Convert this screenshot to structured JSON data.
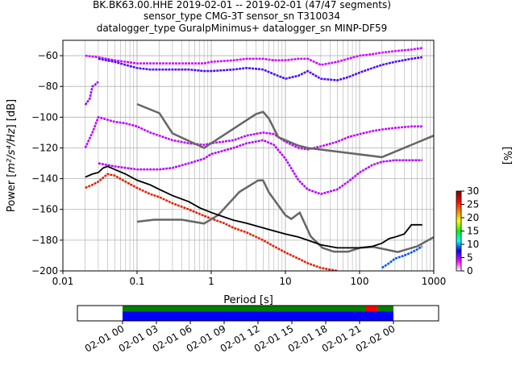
{
  "title": {
    "line1": "BK.BK63.00.HHE   2019-02-01 -- 2019-02-01  (47/47 segments)",
    "line2": "sensor_type CMG-3T sensor_sn T310034",
    "line3": "datalogger_type GuralpMinimus+ datalogger_sn MINP-DF59"
  },
  "chart_data": [
    {
      "type": "heatmap",
      "subtype": "probabilistic power spectral density",
      "xlabel": "Period [s]",
      "ylabel_prefix": "Power [",
      "ylabel_units": "m²/s⁴/Hz",
      "ylabel_suffix": "] [dB]",
      "xscale": "log",
      "xlim": [
        0.01,
        1000
      ],
      "ylim": [
        -200,
        -50
      ],
      "xticks": [
        {
          "value": 0.01,
          "label": "0.01"
        },
        {
          "value": 0.1,
          "label": "0.1"
        },
        {
          "value": 1,
          "label": "1"
        },
        {
          "value": 10,
          "label": "10"
        },
        {
          "value": 100,
          "label": "100"
        },
        {
          "value": 1000,
          "label": "1000"
        }
      ],
      "yticks": [
        {
          "value": -60,
          "label": "−60"
        },
        {
          "value": -80,
          "label": "−80"
        },
        {
          "value": -100,
          "label": "−100"
        },
        {
          "value": -120,
          "label": "−120"
        },
        {
          "value": -140,
          "label": "−140"
        },
        {
          "value": -160,
          "label": "−160"
        },
        {
          "value": -180,
          "label": "−180"
        },
        {
          "value": -200,
          "label": "−200"
        }
      ],
      "grid": true,
      "colors": {
        "noise_model": "#666666",
        "mode": "#000000"
      },
      "noise_models": [
        {
          "x": [
            0.1,
            0.2,
            0.3,
            0.8,
            4,
            5,
            6,
            8,
            15,
            20,
            200,
            1000
          ],
          "y": [
            -91.5,
            -97.4,
            -110.5,
            -120,
            -98,
            -96.5,
            -101,
            -113,
            -118.5,
            -120,
            -126,
            -112
          ]
        },
        {
          "x": [
            0.1,
            0.17,
            0.4,
            0.8,
            1.24,
            2.4,
            4.3,
            5,
            6,
            10,
            12,
            15.6,
            21.9,
            31.6,
            45,
            70,
            101,
            154,
            328,
            600,
            1000
          ],
          "y": [
            -168,
            -166.7,
            -166.7,
            -169.2,
            -163.7,
            -148.6,
            -141.1,
            -141.1,
            -149,
            -163.8,
            -166.2,
            -162.1,
            -177.5,
            -185,
            -187.5,
            -187.5,
            -185,
            -184.4,
            -187.7,
            -184,
            -178
          ]
        }
      ],
      "mode_curve": {
        "x": [
          0.02,
          0.025,
          0.03,
          0.035,
          0.04,
          0.05,
          0.07,
          0.1,
          0.15,
          0.2,
          0.3,
          0.5,
          0.7,
          1,
          1.5,
          2,
          3,
          5,
          7,
          10,
          15,
          20,
          30,
          50,
          70,
          100,
          150,
          200,
          250,
          300,
          400,
          500,
          700
        ],
        "y": [
          -139,
          -137,
          -136,
          -133,
          -132,
          -134,
          -137,
          -141,
          -144,
          -147,
          -151,
          -155,
          -159,
          -162,
          -165,
          -167,
          -169,
          -172,
          -174,
          -176,
          -178,
          -180,
          -183,
          -185,
          -185,
          -185,
          -184,
          -182,
          -179,
          -178,
          -176,
          -170,
          -170
        ]
      },
      "pdf_bands": [
        {
          "x": [
            0.02,
            0.023,
            0.024,
            0.025,
            0.027,
            0.03
          ],
          "y": [
            -92,
            -88,
            -84,
            -80,
            -79,
            -77
          ]
        },
        {
          "x": [
            0.02,
            0.03,
            0.05,
            0.07,
            0.1,
            0.15,
            0.2,
            0.3,
            0.5,
            0.8,
            1,
            2,
            3,
            5,
            7,
            10,
            15,
            20,
            30,
            50,
            70,
            100,
            150,
            200,
            300,
            500,
            700
          ],
          "y": [
            -60,
            -61,
            -63,
            -64,
            -65,
            -65,
            -65,
            -65,
            -65,
            -65,
            -64,
            -63,
            -62,
            -62,
            -63,
            -63,
            -62,
            -62,
            -66,
            -64,
            -62,
            -60,
            -59,
            -58,
            -57,
            -56,
            -55
          ]
        },
        {
          "x": [
            0.03,
            0.05,
            0.07,
            0.1,
            0.15,
            0.2,
            0.3,
            0.5,
            0.8,
            1,
            2,
            3,
            5,
            7,
            10,
            15,
            20,
            30,
            50,
            70,
            100,
            150,
            200,
            300,
            500,
            700
          ],
          "y": [
            -62,
            -64,
            -66,
            -68,
            -69,
            -69,
            -69,
            -69,
            -70,
            -70,
            -69,
            -68,
            -69,
            -72,
            -75,
            -73,
            -70,
            -75,
            -76,
            -74,
            -71,
            -68,
            -66,
            -64,
            -62,
            -61
          ]
        },
        {
          "x": [
            0.02,
            0.025,
            0.03,
            0.05,
            0.07,
            0.1,
            0.15,
            0.2,
            0.3,
            0.5,
            0.8,
            1,
            2,
            3,
            5,
            7,
            10,
            15,
            20,
            30,
            50,
            70,
            100,
            150,
            200,
            300,
            500,
            700
          ],
          "y": [
            -120,
            -110,
            -100,
            -103,
            -104,
            -106,
            -110,
            -112,
            -115,
            -117,
            -118,
            -117,
            -115,
            -112,
            -110,
            -111,
            -116,
            -120,
            -121,
            -119,
            -116,
            -113,
            -111,
            -109,
            -108,
            -107,
            -106,
            -106
          ]
        },
        {
          "x": [
            0.03,
            0.05,
            0.07,
            0.1,
            0.15,
            0.2,
            0.3,
            0.5,
            0.8,
            1,
            2,
            3,
            5,
            7,
            10,
            15,
            20,
            30,
            50,
            70,
            100,
            150,
            200,
            300,
            500,
            700
          ],
          "y": [
            -130,
            -132,
            -133,
            -134,
            -134,
            -134,
            -133,
            -130,
            -127,
            -124,
            -120,
            -117,
            -115,
            -118,
            -127,
            -141,
            -147,
            -150,
            -147,
            -142,
            -136,
            -131,
            -129,
            -128,
            -128,
            -128
          ]
        },
        {
          "x": [
            0.02,
            0.025,
            0.03,
            0.04,
            0.05,
            0.07,
            0.1,
            0.15,
            0.2,
            0.3,
            0.5,
            0.7,
            1,
            1.5,
            2,
            3,
            5,
            7,
            10,
            15,
            20,
            30,
            50
          ],
          "y": [
            -146,
            -144,
            -142,
            -137,
            -138,
            -142,
            -146,
            -150,
            -152,
            -156,
            -160,
            -163,
            -166,
            -169,
            -172,
            -175,
            -180,
            -184,
            -188,
            -192,
            -195,
            -198,
            -200
          ]
        },
        {
          "x": [
            200,
            250,
            300,
            400,
            500,
            600,
            700
          ],
          "y": [
            -198,
            -195,
            -192,
            -190,
            -188,
            -186,
            -184
          ]
        }
      ],
      "colorbar": {
        "label": "[%]",
        "range": [
          0,
          30
        ],
        "ticks": [
          {
            "value": 0,
            "label": "0"
          },
          {
            "value": 5,
            "label": "5"
          },
          {
            "value": 10,
            "label": "10"
          },
          {
            "value": 15,
            "label": "15"
          },
          {
            "value": 20,
            "label": "20"
          },
          {
            "value": 25,
            "label": "25"
          },
          {
            "value": 30,
            "label": "30"
          }
        ],
        "colors": [
          "#ffffff",
          "#ff00ff",
          "#0000ff",
          "#00ffff",
          "#00ff00",
          "#ffff00",
          "#ff8000",
          "#ff0000",
          "#800000"
        ]
      }
    },
    {
      "type": "timeline",
      "xlim_hours": [
        -4,
        28
      ],
      "ticks": [
        {
          "hour": 0,
          "label": "02-01 00"
        },
        {
          "hour": 3,
          "label": "02-01 03"
        },
        {
          "hour": 6,
          "label": "02-01 06"
        },
        {
          "hour": 9,
          "label": "02-01 09"
        },
        {
          "hour": 12,
          "label": "02-01 12"
        },
        {
          "hour": 15,
          "label": "02-01 15"
        },
        {
          "hour": 18,
          "label": "02-01 18"
        },
        {
          "hour": 21,
          "label": "02-01 21"
        },
        {
          "hour": 24,
          "label": "02-02 00"
        }
      ],
      "rows": [
        {
          "color": "#008000",
          "segments": [
            [
              0,
              21.5
            ],
            [
              22.6,
              24
            ]
          ]
        },
        {
          "color": "#ff0000",
          "segments": [
            [
              21.5,
              22.6
            ]
          ]
        },
        {
          "color": "#0000ff",
          "segments": [
            [
              0,
              24
            ]
          ]
        }
      ]
    }
  ]
}
